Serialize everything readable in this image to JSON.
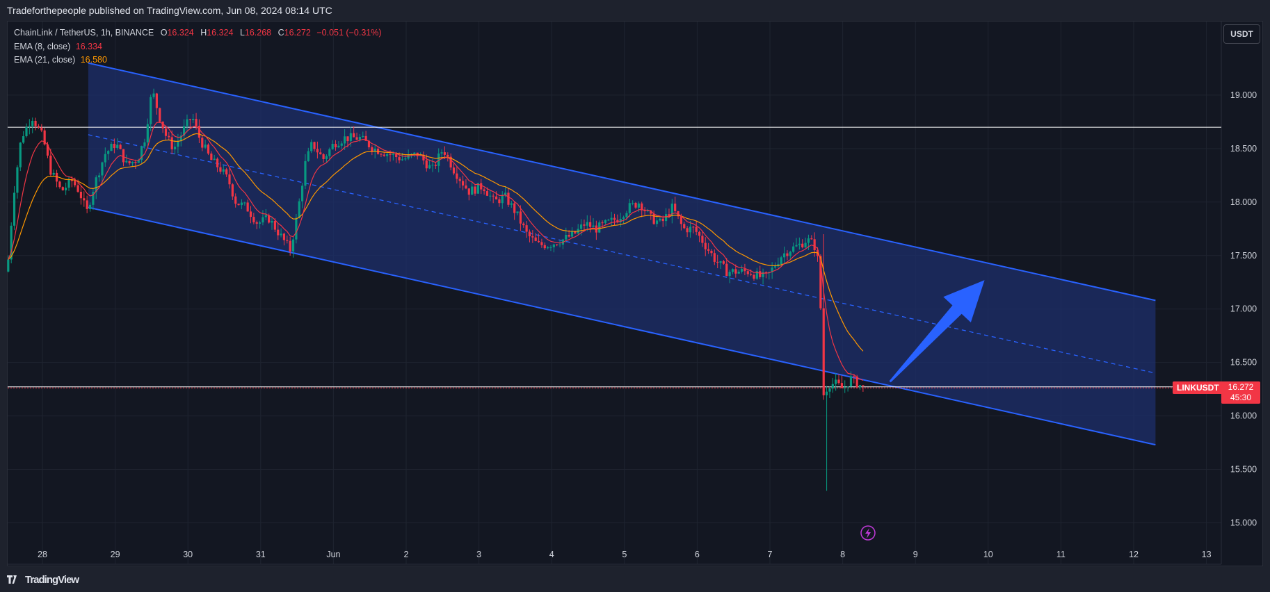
{
  "header": {
    "publish_line": "Tradeforthepeople published on TradingView.com, Jun 08, 2024 08:14 UTC"
  },
  "legend": {
    "symbol": "ChainLink / TetherUS, 1h, BINANCE",
    "o_label": "O",
    "o_value": "16.324",
    "h_label": "H",
    "h_value": "16.324",
    "l_label": "L",
    "l_value": "16.268",
    "c_label": "C",
    "c_value": "16.272",
    "change": "−0.051 (−0.31%)",
    "ema8_label": "EMA (8, close)",
    "ema8_value": "16.334",
    "ema21_label": "EMA (21, close)",
    "ema21_value": "16.580"
  },
  "currency_button": "USDT",
  "price_tag": {
    "symbol": "LINKUSDT",
    "price": "16.272",
    "countdown": "45:30"
  },
  "footer": {
    "brand": "TradingView",
    "logo": "tradingview-logo-icon"
  },
  "colors": {
    "background": "#131722",
    "bull": "#089981",
    "bear": "#f23645",
    "ema8": "#f23645",
    "ema21": "#ff9800",
    "channel": "#2962ff",
    "channel_fill": "#1e2f6b",
    "arrow": "#2962ff",
    "grid": "#1f2430"
  },
  "chart_data": {
    "type": "candlestick",
    "symbol": "LINKUSDT",
    "timeframe": "1h",
    "y_axis": {
      "ticks": [
        15.0,
        15.5,
        16.0,
        16.5,
        17.0,
        17.5,
        18.0,
        18.5,
        19.0
      ],
      "tick_labels": [
        "15.000",
        "15.500",
        "16.000",
        "16.500",
        "17.000",
        "17.500",
        "18.000",
        "18.500",
        "19.000"
      ],
      "range": [
        14.8,
        19.6
      ]
    },
    "x_axis": {
      "ticks": [
        "28",
        "29",
        "30",
        "31",
        "Jun",
        "2",
        "3",
        "4",
        "5",
        "6",
        "7",
        "8",
        "9",
        "10",
        "11",
        "12",
        "13"
      ],
      "day_index": [
        0,
        1,
        2,
        3,
        4,
        5,
        6,
        7,
        8,
        9,
        10,
        11,
        12,
        13,
        14,
        15,
        16
      ],
      "range_days": [
        -0.47,
        16.2
      ]
    },
    "price_path": [
      [
        -0.47,
        17.35
      ],
      [
        -0.43,
        17.45
      ],
      [
        -0.35,
        18.1
      ],
      [
        -0.25,
        18.6
      ],
      [
        -0.1,
        18.8
      ],
      [
        0.05,
        18.6
      ],
      [
        0.15,
        18.3
      ],
      [
        0.3,
        18.1
      ],
      [
        0.45,
        18.2
      ],
      [
        0.55,
        18.1
      ],
      [
        0.65,
        17.9
      ],
      [
        0.75,
        18.15
      ],
      [
        0.9,
        18.45
      ],
      [
        1.05,
        18.55
      ],
      [
        1.2,
        18.35
      ],
      [
        1.35,
        18.4
      ],
      [
        1.45,
        18.6
      ],
      [
        1.55,
        19.05
      ],
      [
        1.65,
        18.8
      ],
      [
        1.75,
        18.6
      ],
      [
        1.85,
        18.5
      ],
      [
        2.0,
        18.7
      ],
      [
        2.1,
        18.8
      ],
      [
        2.2,
        18.6
      ],
      [
        2.35,
        18.4
      ],
      [
        2.5,
        18.3
      ],
      [
        2.6,
        18.2
      ],
      [
        2.7,
        18.0
      ],
      [
        2.85,
        17.95
      ],
      [
        3.0,
        17.8
      ],
      [
        3.15,
        17.85
      ],
      [
        3.3,
        17.7
      ],
      [
        3.45,
        17.55
      ],
      [
        3.55,
        17.9
      ],
      [
        3.65,
        18.35
      ],
      [
        3.75,
        18.55
      ],
      [
        3.9,
        18.4
      ],
      [
        4.05,
        18.55
      ],
      [
        4.2,
        18.6
      ],
      [
        4.4,
        18.6
      ],
      [
        4.6,
        18.5
      ],
      [
        4.8,
        18.45
      ],
      [
        5.0,
        18.4
      ],
      [
        5.2,
        18.45
      ],
      [
        5.4,
        18.3
      ],
      [
        5.55,
        18.5
      ],
      [
        5.7,
        18.3
      ],
      [
        5.9,
        18.1
      ],
      [
        6.1,
        18.15
      ],
      [
        6.25,
        18.0
      ],
      [
        6.4,
        18.05
      ],
      [
        6.55,
        17.9
      ],
      [
        6.7,
        17.7
      ],
      [
        6.85,
        17.6
      ],
      [
        7.0,
        17.6
      ],
      [
        7.2,
        17.65
      ],
      [
        7.35,
        17.7
      ],
      [
        7.5,
        17.8
      ],
      [
        7.65,
        17.75
      ],
      [
        7.8,
        17.8
      ],
      [
        7.95,
        17.85
      ],
      [
        8.1,
        17.95
      ],
      [
        8.25,
        18.0
      ],
      [
        8.4,
        17.85
      ],
      [
        8.55,
        17.8
      ],
      [
        8.7,
        17.95
      ],
      [
        8.85,
        17.75
      ],
      [
        9.0,
        17.75
      ],
      [
        9.15,
        17.6
      ],
      [
        9.3,
        17.45
      ],
      [
        9.45,
        17.35
      ],
      [
        9.6,
        17.35
      ],
      [
        9.75,
        17.35
      ],
      [
        9.9,
        17.3
      ],
      [
        10.0,
        17.3
      ],
      [
        10.1,
        17.4
      ],
      [
        10.2,
        17.5
      ],
      [
        10.3,
        17.55
      ],
      [
        10.45,
        17.6
      ],
      [
        10.55,
        17.65
      ],
      [
        10.65,
        17.6
      ],
      [
        10.72,
        17.4
      ],
      [
        10.76,
        16.55
      ],
      [
        10.78,
        16.2
      ],
      [
        10.85,
        16.3
      ],
      [
        10.95,
        16.3
      ],
      [
        11.05,
        16.25
      ],
      [
        11.15,
        16.35
      ],
      [
        11.25,
        16.3
      ],
      [
        11.32,
        16.27
      ]
    ],
    "anomalies": [
      {
        "t": 10.77,
        "wick_low": 15.3
      },
      {
        "t": 10.74,
        "wick_high": 17.7
      }
    ],
    "ema8_last": 16.334,
    "ema21_last": 16.58,
    "last_price": 16.272,
    "horizontal_lines": [
      18.7,
      16.272
    ],
    "channel": {
      "x_start": 0.63,
      "x_end": 15.3,
      "upper": [
        19.3,
        17.08
      ],
      "lower": [
        17.95,
        15.73
      ],
      "mid": [
        18.63,
        16.4
      ]
    },
    "arrow": {
      "from": [
        11.65,
        16.32
      ],
      "to": [
        12.95,
        17.27
      ]
    },
    "grid": true
  }
}
